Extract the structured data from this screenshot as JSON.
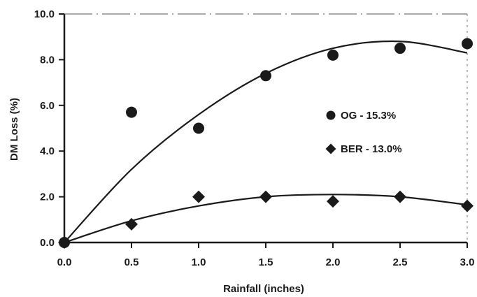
{
  "chart_data": {
    "type": "scatter",
    "title": "",
    "xlabel": "Rainfall (inches)",
    "ylabel": "DM Loss (%)",
    "xlim": [
      0.0,
      3.0
    ],
    "ylim": [
      0.0,
      10.0
    ],
    "x_ticks": [
      "0.0",
      "0.5",
      "1.0",
      "1.5",
      "2.0",
      "2.5",
      "3.0"
    ],
    "y_ticks": [
      "0.0",
      "2.0",
      "4.0",
      "6.0",
      "8.0",
      "10.0"
    ],
    "grid": false,
    "legend_position": "right",
    "series": [
      {
        "name": "OG - 15.3%",
        "marker": "circle",
        "color": "#1a1a1a",
        "points": [
          {
            "x": 0.0,
            "y": 0.0
          },
          {
            "x": 0.5,
            "y": 5.7
          },
          {
            "x": 1.0,
            "y": 5.0
          },
          {
            "x": 1.5,
            "y": 7.3
          },
          {
            "x": 2.0,
            "y": 8.2
          },
          {
            "x": 2.5,
            "y": 8.5
          },
          {
            "x": 3.0,
            "y": 8.7
          }
        ],
        "trend": [
          {
            "x": 0.0,
            "y": 0.0
          },
          {
            "x": 0.5,
            "y": 3.2
          },
          {
            "x": 1.0,
            "y": 5.6
          },
          {
            "x": 1.5,
            "y": 7.4
          },
          {
            "x": 2.0,
            "y": 8.5
          },
          {
            "x": 2.5,
            "y": 8.8
          },
          {
            "x": 3.0,
            "y": 8.3
          }
        ]
      },
      {
        "name": "BER - 13.0%",
        "marker": "diamond",
        "color": "#1a1a1a",
        "points": [
          {
            "x": 0.0,
            "y": 0.0
          },
          {
            "x": 0.5,
            "y": 0.8
          },
          {
            "x": 1.0,
            "y": 2.0
          },
          {
            "x": 1.5,
            "y": 2.0
          },
          {
            "x": 2.0,
            "y": 1.8
          },
          {
            "x": 2.5,
            "y": 2.0
          },
          {
            "x": 3.0,
            "y": 1.6
          }
        ],
        "trend": [
          {
            "x": 0.0,
            "y": 0.0
          },
          {
            "x": 0.5,
            "y": 0.95
          },
          {
            "x": 1.0,
            "y": 1.6
          },
          {
            "x": 1.5,
            "y": 2.0
          },
          {
            "x": 2.0,
            "y": 2.1
          },
          {
            "x": 2.5,
            "y": 2.0
          },
          {
            "x": 3.0,
            "y": 1.65
          }
        ]
      }
    ]
  }
}
